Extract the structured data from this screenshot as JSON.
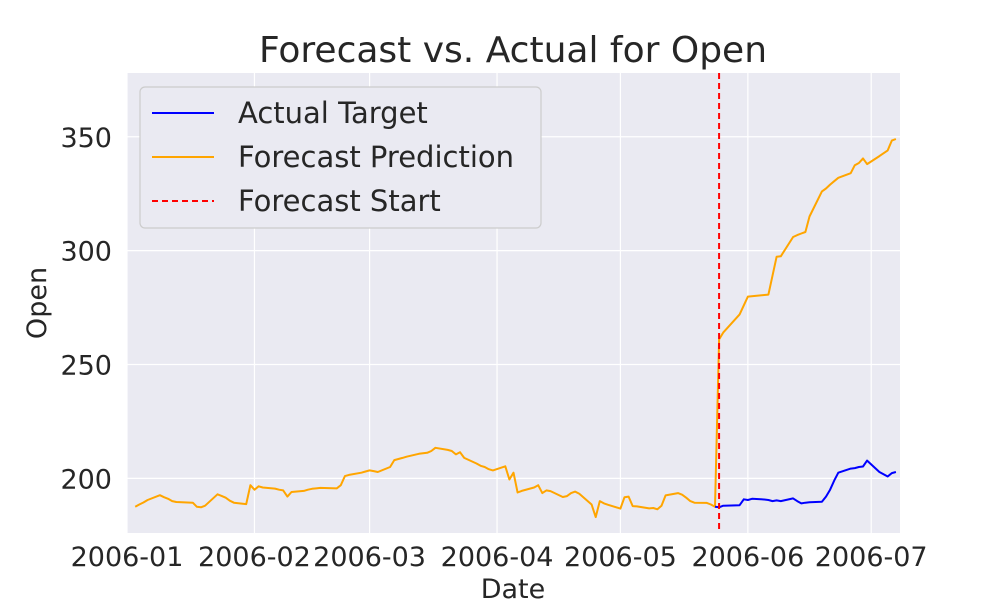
{
  "chart_data": {
    "type": "line",
    "title": "Forecast vs. Actual for Open",
    "xlabel": "Date",
    "ylabel": "Open",
    "x_ticks": [
      "2006-01",
      "2006-02",
      "2006-03",
      "2006-04",
      "2006-05",
      "2006-06",
      "2006-07"
    ],
    "y_ticks": [
      200,
      250,
      300,
      350
    ],
    "xlim": [
      "2006-01-01",
      "2006-07-08"
    ],
    "ylim": [
      176,
      378
    ],
    "grid": true,
    "legend_position": "top-left",
    "forecast_start": "2006-05-25",
    "series": [
      {
        "name": "Actual Target",
        "color": "#0000ff",
        "points": [
          [
            "2006-01-03",
            187.5
          ],
          [
            "2006-01-04",
            188.5
          ],
          [
            "2006-01-05",
            189.4
          ],
          [
            "2006-01-06",
            190.5
          ],
          [
            "2006-01-09",
            192.6
          ],
          [
            "2006-01-10",
            191.7
          ],
          [
            "2006-01-11",
            191.0
          ],
          [
            "2006-01-12",
            190.0
          ],
          [
            "2006-01-13",
            189.6
          ],
          [
            "2006-01-17",
            189.3
          ],
          [
            "2006-01-18",
            187.5
          ],
          [
            "2006-01-19",
            187.3
          ],
          [
            "2006-01-20",
            188.0
          ],
          [
            "2006-01-23",
            193.0
          ],
          [
            "2006-01-24",
            192.3
          ],
          [
            "2006-01-25",
            191.5
          ],
          [
            "2006-01-26",
            190.2
          ],
          [
            "2006-01-27",
            189.3
          ],
          [
            "2006-01-30",
            188.7
          ],
          [
            "2006-01-31",
            197.0
          ],
          [
            "2006-02-01",
            195.0
          ],
          [
            "2006-02-02",
            196.5
          ],
          [
            "2006-02-03",
            196.0
          ],
          [
            "2006-02-06",
            195.5
          ],
          [
            "2006-02-07",
            195.0
          ],
          [
            "2006-02-08",
            194.7
          ],
          [
            "2006-02-09",
            192.0
          ],
          [
            "2006-02-10",
            194.0
          ],
          [
            "2006-02-13",
            194.5
          ],
          [
            "2006-02-14",
            195.0
          ],
          [
            "2006-02-15",
            195.4
          ],
          [
            "2006-02-16",
            195.6
          ],
          [
            "2006-02-17",
            195.8
          ],
          [
            "2006-02-21",
            195.6
          ],
          [
            "2006-02-22",
            197.0
          ],
          [
            "2006-02-23",
            201.0
          ],
          [
            "2006-02-24",
            201.5
          ],
          [
            "2006-02-27",
            202.5
          ],
          [
            "2006-02-28",
            203.0
          ],
          [
            "2006-03-01",
            203.5
          ],
          [
            "2006-03-02",
            203.2
          ],
          [
            "2006-03-03",
            202.8
          ],
          [
            "2006-03-06",
            205.0
          ],
          [
            "2006-03-07",
            208.0
          ],
          [
            "2006-03-08",
            208.5
          ],
          [
            "2006-03-09",
            209.0
          ],
          [
            "2006-03-10",
            209.5
          ],
          [
            "2006-03-13",
            210.8
          ],
          [
            "2006-03-14",
            211.0
          ],
          [
            "2006-03-15",
            211.2
          ],
          [
            "2006-03-16",
            212.0
          ],
          [
            "2006-03-17",
            213.4
          ],
          [
            "2006-03-20",
            212.5
          ],
          [
            "2006-03-21",
            212.0
          ],
          [
            "2006-03-22",
            210.5
          ],
          [
            "2006-03-23",
            211.5
          ],
          [
            "2006-03-24",
            209.0
          ],
          [
            "2006-03-27",
            206.5
          ],
          [
            "2006-03-28",
            205.5
          ],
          [
            "2006-03-29",
            205.0
          ],
          [
            "2006-03-30",
            204.0
          ],
          [
            "2006-03-31",
            203.5
          ],
          [
            "2006-04-03",
            205.3
          ],
          [
            "2006-04-04",
            199.5
          ],
          [
            "2006-04-05",
            202.5
          ],
          [
            "2006-04-06",
            193.8
          ],
          [
            "2006-04-07",
            194.5
          ],
          [
            "2006-04-10",
            196.0
          ],
          [
            "2006-04-11",
            197.0
          ],
          [
            "2006-04-12",
            193.5
          ],
          [
            "2006-04-13",
            194.7
          ],
          [
            "2006-04-14",
            194.4
          ],
          [
            "2006-04-17",
            191.8
          ],
          [
            "2006-04-18",
            192.2
          ],
          [
            "2006-04-19",
            193.5
          ],
          [
            "2006-04-20",
            194.2
          ],
          [
            "2006-04-21",
            193.2
          ],
          [
            "2006-04-24",
            188.5
          ],
          [
            "2006-04-25",
            183.0
          ],
          [
            "2006-04-26",
            190.0
          ],
          [
            "2006-04-27",
            189.0
          ],
          [
            "2006-04-28",
            188.4
          ],
          [
            "2006-05-01",
            186.7
          ],
          [
            "2006-05-02",
            191.7
          ],
          [
            "2006-05-03",
            192.0
          ],
          [
            "2006-05-04",
            187.8
          ],
          [
            "2006-05-05",
            187.7
          ],
          [
            "2006-05-08",
            186.8
          ],
          [
            "2006-05-09",
            187.0
          ],
          [
            "2006-05-10",
            186.4
          ],
          [
            "2006-05-11",
            188.0
          ],
          [
            "2006-05-12",
            192.5
          ],
          [
            "2006-05-15",
            193.5
          ],
          [
            "2006-05-16",
            192.8
          ],
          [
            "2006-05-17",
            191.5
          ],
          [
            "2006-05-18",
            190.0
          ],
          [
            "2006-05-19",
            189.3
          ],
          [
            "2006-05-22",
            189.2
          ],
          [
            "2006-05-23",
            188.5
          ],
          [
            "2006-05-24",
            187.5
          ],
          [
            "2006-05-25",
            187.3
          ],
          [
            "2006-05-26",
            188.0
          ],
          [
            "2006-05-30",
            188.2
          ],
          [
            "2006-05-31",
            190.8
          ],
          [
            "2006-06-01",
            190.5
          ],
          [
            "2006-06-02",
            191.0
          ],
          [
            "2006-06-05",
            190.7
          ],
          [
            "2006-06-06",
            190.5
          ],
          [
            "2006-06-07",
            190.0
          ],
          [
            "2006-06-08",
            190.3
          ],
          [
            "2006-06-09",
            190.0
          ],
          [
            "2006-06-12",
            191.2
          ],
          [
            "2006-06-13",
            190.0
          ],
          [
            "2006-06-14",
            189.0
          ],
          [
            "2006-06-15",
            189.3
          ],
          [
            "2006-06-16",
            189.5
          ],
          [
            "2006-06-19",
            189.7
          ],
          [
            "2006-06-20",
            192.0
          ],
          [
            "2006-06-21",
            195.0
          ],
          [
            "2006-06-22",
            199.0
          ],
          [
            "2006-06-23",
            202.5
          ],
          [
            "2006-06-26",
            204.3
          ],
          [
            "2006-06-27",
            204.5
          ],
          [
            "2006-06-28",
            205.0
          ],
          [
            "2006-06-29",
            205.2
          ],
          [
            "2006-06-30",
            207.8
          ],
          [
            "2006-07-03",
            202.8
          ],
          [
            "2006-07-05",
            200.8
          ],
          [
            "2006-07-06",
            202.3
          ],
          [
            "2006-07-07",
            202.8
          ]
        ]
      },
      {
        "name": "Forecast Prediction",
        "color": "#ffa500",
        "points": [
          [
            "2006-05-25",
            261.0
          ],
          [
            "2006-05-26",
            264.0
          ],
          [
            "2006-05-30",
            272.0
          ],
          [
            "2006-06-01",
            279.8
          ],
          [
            "2006-06-05",
            280.5
          ],
          [
            "2006-06-06",
            280.7
          ],
          [
            "2006-06-07",
            289.0
          ],
          [
            "2006-06-08",
            297.3
          ],
          [
            "2006-06-09",
            297.5
          ],
          [
            "2006-06-12",
            306.0
          ],
          [
            "2006-06-13",
            306.8
          ],
          [
            "2006-06-14",
            307.5
          ],
          [
            "2006-06-15",
            308.2
          ],
          [
            "2006-06-16",
            315.0
          ],
          [
            "2006-06-19",
            326.0
          ],
          [
            "2006-06-20",
            327.3
          ],
          [
            "2006-06-21",
            329.0
          ],
          [
            "2006-06-22",
            330.5
          ],
          [
            "2006-06-23",
            332.0
          ],
          [
            "2006-06-26",
            334.0
          ],
          [
            "2006-06-27",
            337.5
          ],
          [
            "2006-06-28",
            338.5
          ],
          [
            "2006-06-29",
            340.5
          ],
          [
            "2006-06-30",
            338.0
          ],
          [
            "2006-07-03",
            341.5
          ],
          [
            "2006-07-05",
            344.0
          ],
          [
            "2006-07-06",
            348.3
          ],
          [
            "2006-07-07",
            349.0
          ]
        ]
      },
      {
        "name": "Forecast Start",
        "color": "#ff0000"
      }
    ]
  }
}
